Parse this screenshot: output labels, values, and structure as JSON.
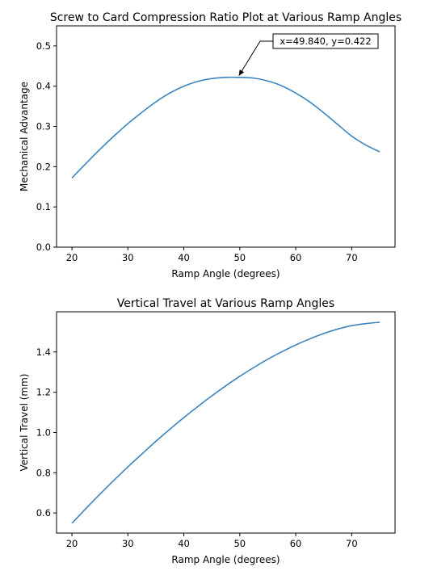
{
  "chart_data": [
    {
      "type": "line",
      "title": "Screw to Card Compression Ratio Plot at Various Ramp Angles",
      "xlabel": "Ramp Angle (degrees)",
      "ylabel": "Mechanical Advantage",
      "xlim": [
        17.25,
        77.75
      ],
      "ylim": [
        0.0,
        0.55
      ],
      "xticks": [
        20,
        30,
        40,
        50,
        60,
        70
      ],
      "yticks": [
        0.0,
        0.1,
        0.2,
        0.3,
        0.4,
        0.5
      ],
      "ytick_decimals": 1,
      "grid": false,
      "line_color": "#3b84c0",
      "series": [
        {
          "x": [
            20,
            22.5,
            25,
            27.5,
            30,
            32.5,
            35,
            37.5,
            40,
            42.5,
            45,
            47.5,
            49.84,
            52.5,
            55,
            57.5,
            60,
            62.5,
            65,
            67.5,
            70,
            72.5,
            75
          ],
          "values": [
            0.172,
            0.208,
            0.243,
            0.276,
            0.307,
            0.335,
            0.361,
            0.383,
            0.4,
            0.412,
            0.419,
            0.422,
            0.422,
            0.42,
            0.413,
            0.401,
            0.383,
            0.361,
            0.334,
            0.305,
            0.276,
            0.254,
            0.237
          ]
        }
      ],
      "annotation": {
        "text": "x=49.840, y=0.422",
        "x": 49.84,
        "y": 0.422
      }
    },
    {
      "type": "line",
      "title": "Vertical Travel at Various Ramp Angles",
      "xlabel": "Ramp Angle (degrees)",
      "ylabel": "Vertical Travel (mm)",
      "xlim": [
        17.25,
        77.75
      ],
      "ylim": [
        0.5,
        1.6
      ],
      "xticks": [
        20,
        30,
        40,
        50,
        60,
        70
      ],
      "yticks": [
        0.6,
        0.8,
        1.0,
        1.2,
        1.4
      ],
      "ytick_decimals": 1,
      "grid": false,
      "line_color": "#3b84c0",
      "series": [
        {
          "x": [
            20,
            22.5,
            25,
            27.5,
            30,
            32.5,
            35,
            37.5,
            40,
            42.5,
            45,
            47.5,
            50,
            52.5,
            55,
            57.5,
            60,
            62.5,
            65,
            67.5,
            70,
            72.5,
            75
          ],
          "values": [
            0.549,
            0.622,
            0.693,
            0.762,
            0.829,
            0.893,
            0.956,
            1.016,
            1.074,
            1.129,
            1.182,
            1.232,
            1.279,
            1.323,
            1.364,
            1.401,
            1.435,
            1.465,
            1.492,
            1.514,
            1.531,
            1.541,
            1.548
          ]
        }
      ]
    }
  ]
}
